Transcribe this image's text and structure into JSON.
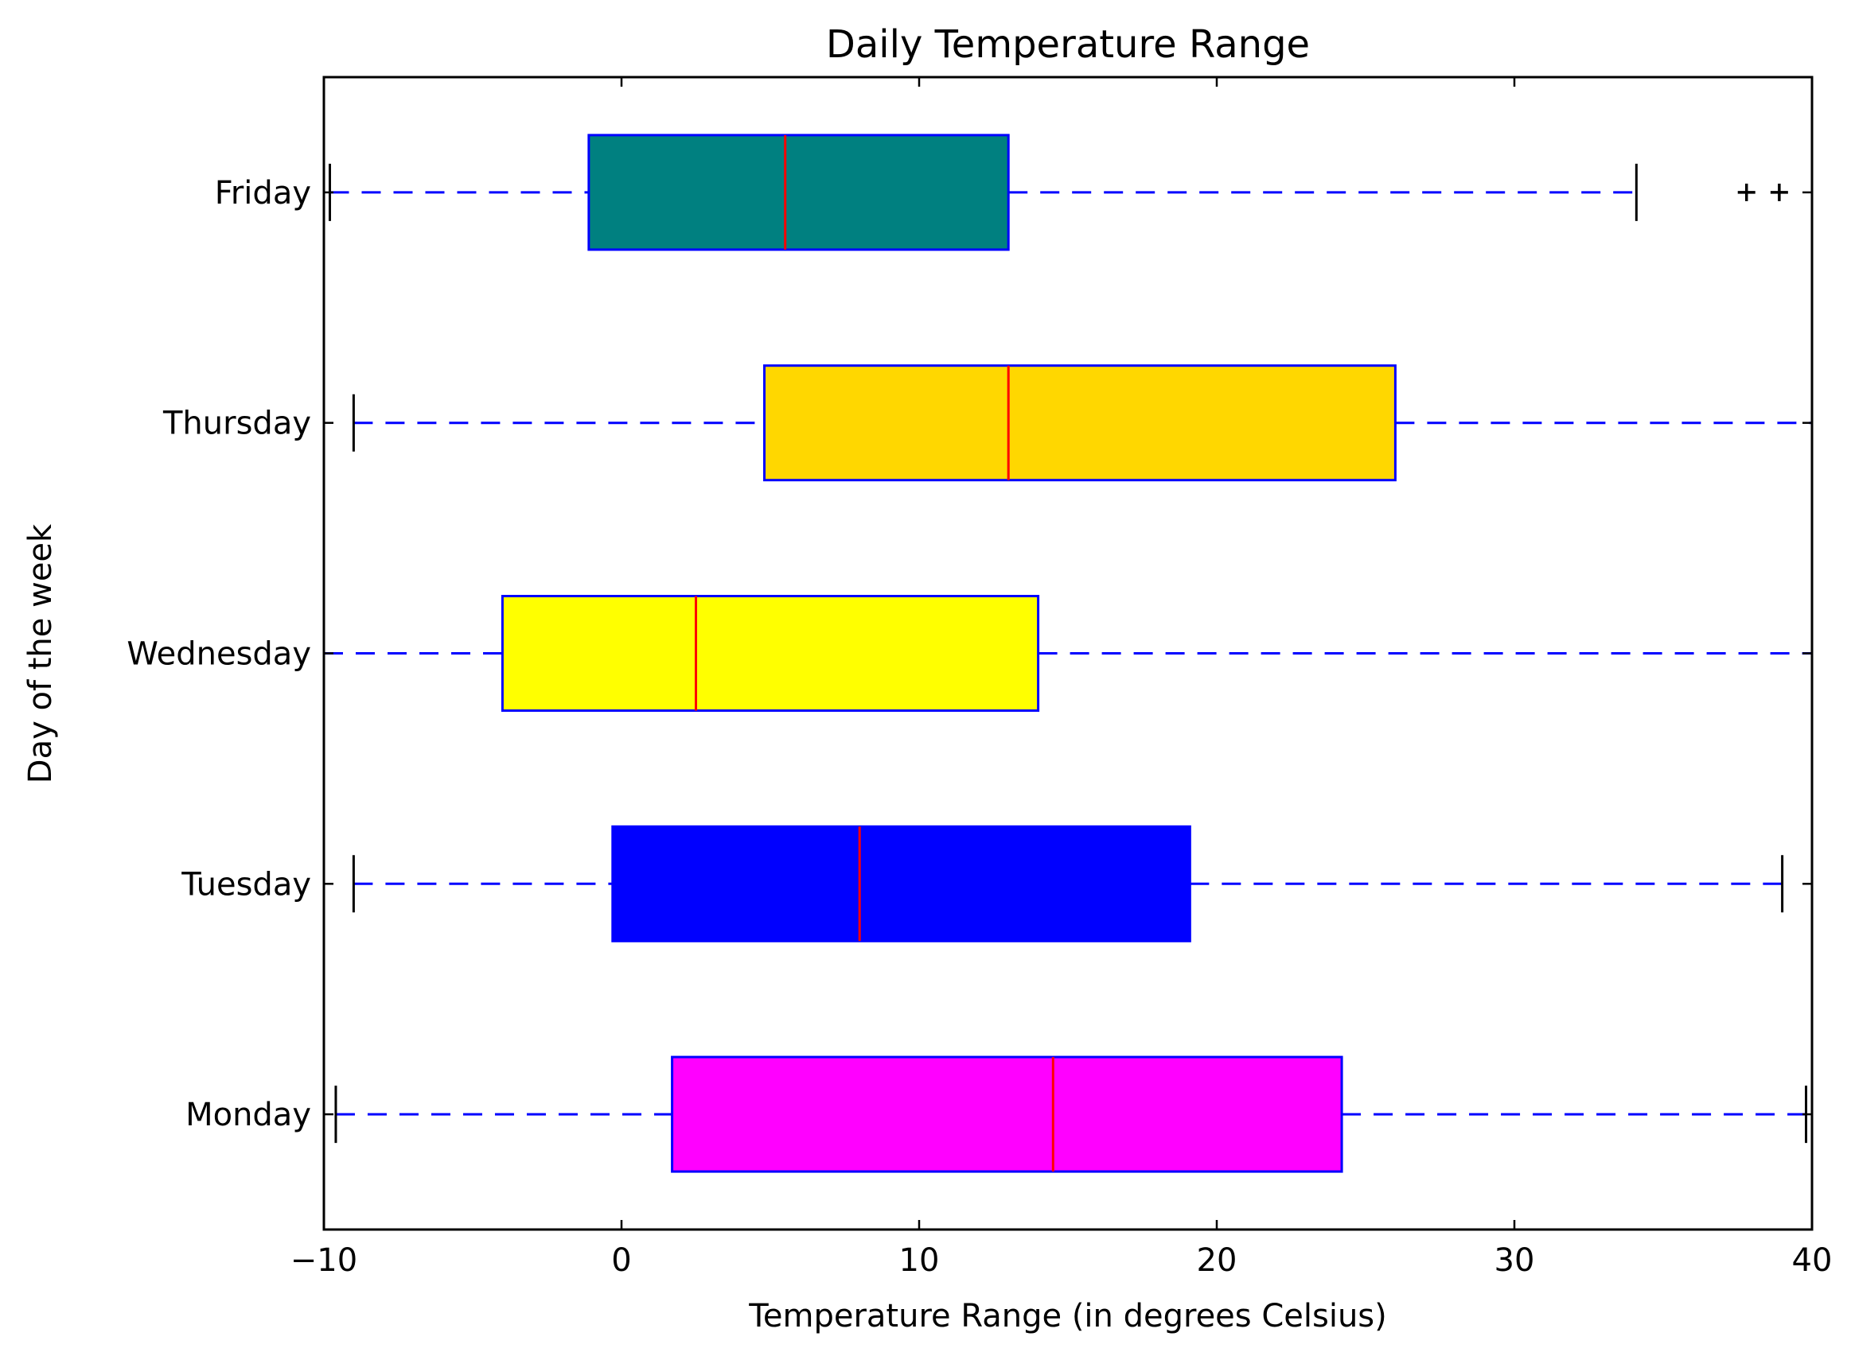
{
  "chart_data": {
    "type": "boxplot",
    "orientation": "horizontal",
    "title": "Daily Temperature Range",
    "xlabel": "Temperature Range (in degrees Celsius)",
    "ylabel": "Day of the week",
    "xlim": [
      -10,
      40
    ],
    "xticks": [
      -10,
      0,
      10,
      20,
      30,
      40
    ],
    "xtick_labels": [
      "−10",
      "0",
      "10",
      "20",
      "30",
      "40"
    ],
    "grid": false,
    "categories": [
      "Monday",
      "Tuesday",
      "Wednesday",
      "Thursday",
      "Friday"
    ],
    "boxes": [
      {
        "category": "Monday",
        "whisker_low": -9.6,
        "q1": 1.7,
        "median": 14.5,
        "q3": 24.2,
        "whisker_high": 39.8,
        "outliers": [],
        "fill": "#ff00ff"
      },
      {
        "category": "Tuesday",
        "whisker_low": -9.0,
        "q1": -0.3,
        "median": 8.0,
        "q3": 19.1,
        "whisker_high": 39.0,
        "outliers": [],
        "fill": "#0000ff"
      },
      {
        "category": "Wednesday",
        "whisker_low": -10.0,
        "q1": -4.0,
        "median": 2.5,
        "q3": 14.0,
        "whisker_high": 40.0,
        "outliers": [],
        "fill": "#ffff00"
      },
      {
        "category": "Thursday",
        "whisker_low": -9.0,
        "q1": 4.8,
        "median": 13.0,
        "q3": 26.0,
        "whisker_high": 40.0,
        "outliers": [],
        "fill": "#ffd700"
      },
      {
        "category": "Friday",
        "whisker_low": -9.8,
        "q1": -1.1,
        "median": 5.5,
        "q3": 13.0,
        "whisker_high": 34.1,
        "outliers": [
          37.8,
          38.9
        ],
        "fill": "#008080"
      }
    ],
    "colors": {
      "box_edge": "#0000ff",
      "median": "#ff0000",
      "whisker": "#0000ff",
      "cap": "#000000",
      "flier": "#000000",
      "axes": "#000000"
    }
  }
}
